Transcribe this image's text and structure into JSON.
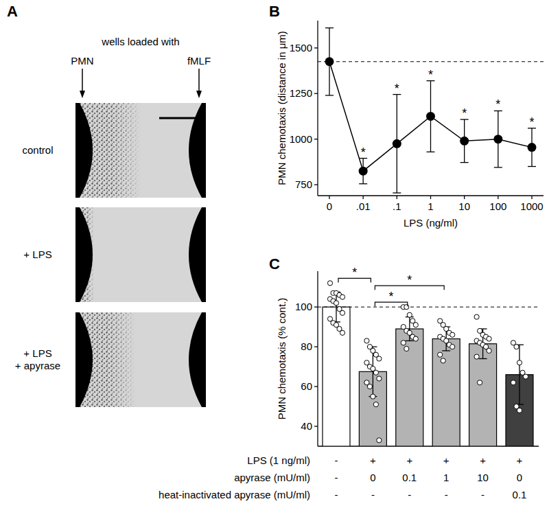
{
  "panel_a": {
    "title": "A",
    "header": "wells loaded with",
    "left_well": "PMN",
    "right_well": "fMLF",
    "rows": [
      [
        "control"
      ],
      [
        "+ LPS"
      ],
      [
        "+ LPS",
        "+ apyrase"
      ]
    ]
  },
  "chart_data": [
    {
      "type": "line",
      "title": "B",
      "categories": [
        "0",
        ".01",
        ".1",
        "1",
        "10",
        "100",
        "1000"
      ],
      "values": [
        1425,
        825,
        975,
        1125,
        990,
        1000,
        955
      ],
      "errors": [
        185,
        70,
        270,
        195,
        118,
        155,
        105
      ],
      "point_labels": [
        null,
        "*",
        "*",
        "*",
        "*",
        "*",
        "*"
      ],
      "reference_line": 1425,
      "xlabel": "LPS (ng/ml)",
      "ylabel": "PMN chemotaxis (distance in μm)",
      "ylim": [
        690,
        1650
      ],
      "yticks": [
        750,
        1000,
        1250,
        1500
      ],
      "color": "#000000",
      "marker": "circle",
      "grid": false
    },
    {
      "type": "bar",
      "title": "C",
      "categories": [
        null,
        null,
        null,
        null,
        null,
        null
      ],
      "values": [
        100,
        67.5,
        89,
        84,
        81.5,
        66
      ],
      "errors": [
        7.5,
        12.5,
        6,
        6,
        7.5,
        15
      ],
      "points": [
        [
          112,
          107,
          107,
          106,
          105,
          104,
          103,
          102,
          99,
          97,
          94,
          92,
          91,
          89,
          87
        ],
        [
          83,
          80,
          78,
          76,
          74,
          72,
          70,
          69,
          67,
          64,
          62,
          60,
          55,
          51,
          33
        ],
        [
          100,
          100,
          96,
          93,
          91,
          90,
          88,
          87,
          85,
          84,
          82,
          79
        ],
        [
          93,
          91,
          89,
          87,
          86,
          85,
          84,
          83,
          81,
          80,
          76,
          73
        ],
        [
          95,
          88,
          86,
          85,
          84,
          83,
          82,
          81,
          80,
          78,
          75,
          62
        ],
        [
          82,
          80,
          72,
          67,
          65,
          62,
          50,
          48
        ]
      ],
      "colors": [
        "#ffffff",
        "#b3b3b3",
        "#b3b3b3",
        "#b3b3b3",
        "#b3b3b3",
        "#404040"
      ],
      "reference_line": 100,
      "ylabel": "PMN chemotaxis (% cont.)",
      "ylim": [
        30,
        118
      ],
      "yticks": [
        40,
        60,
        80,
        100
      ],
      "significance": [
        {
          "pair": [
            0,
            1
          ],
          "label": "*"
        },
        {
          "pair": [
            1,
            2
          ],
          "label": "*"
        },
        {
          "pair": [
            1,
            3
          ],
          "label": "*"
        }
      ],
      "conditions": [
        {
          "label": "LPS (1 ng/ml)",
          "values": [
            "-",
            "+",
            "+",
            "+",
            "+",
            "+"
          ]
        },
        {
          "label": "apyrase (mU/ml)",
          "values": [
            "-",
            "0",
            "0.1",
            "1",
            "10",
            "0"
          ]
        },
        {
          "label": "heat-inactivated apyrase (mU/ml)",
          "values": [
            "-",
            "-",
            "-",
            "-",
            "-",
            "0.1"
          ]
        }
      ],
      "grid": false
    }
  ]
}
